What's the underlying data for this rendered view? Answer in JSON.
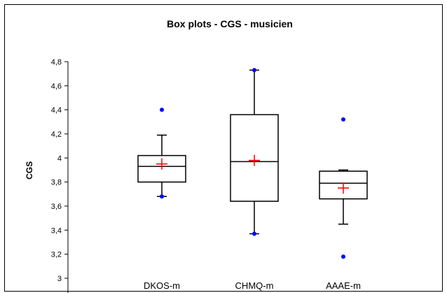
{
  "chart_data": {
    "type": "box",
    "title": "Box plots - CGS - musicien",
    "xlabel": "",
    "ylabel": "CGS",
    "ylim": [
      3,
      4.8
    ],
    "yticks": [
      3,
      3.2,
      3.4,
      3.6,
      3.8,
      4,
      4.2,
      4.4,
      4.6,
      4.8
    ],
    "ytick_labels": [
      "3",
      "3,2",
      "3,4",
      "3,6",
      "3,8",
      "4",
      "4,2",
      "4,4",
      "4,6",
      "4,8"
    ],
    "grid": false,
    "legend": "none",
    "categories": [
      "DKOS-m",
      "CHMQ-m",
      "AAAE-m"
    ],
    "boxes": [
      {
        "category": "DKOS-m",
        "whisker_low": 3.68,
        "q1": 3.8,
        "median": 3.93,
        "q3": 4.02,
        "whisker_high": 4.19,
        "mean": 3.95,
        "min": 3.68,
        "max": 4.4,
        "outliers": []
      },
      {
        "category": "CHMQ-m",
        "whisker_low": 3.37,
        "q1": 3.64,
        "median": 3.97,
        "q3": 4.36,
        "whisker_high": 4.73,
        "mean": 3.98,
        "min": 3.37,
        "max": 4.73,
        "outliers": []
      },
      {
        "category": "AAAE-m",
        "whisker_low": 3.45,
        "q1": 3.66,
        "median": 3.79,
        "q3": 3.89,
        "whisker_high": 3.9,
        "mean": 3.75,
        "min": 3.18,
        "max": 4.32,
        "outliers": []
      }
    ],
    "colors": {
      "box": "#000000",
      "mean_marker": "#ff0000",
      "extreme_marker": "#0000ff"
    }
  }
}
